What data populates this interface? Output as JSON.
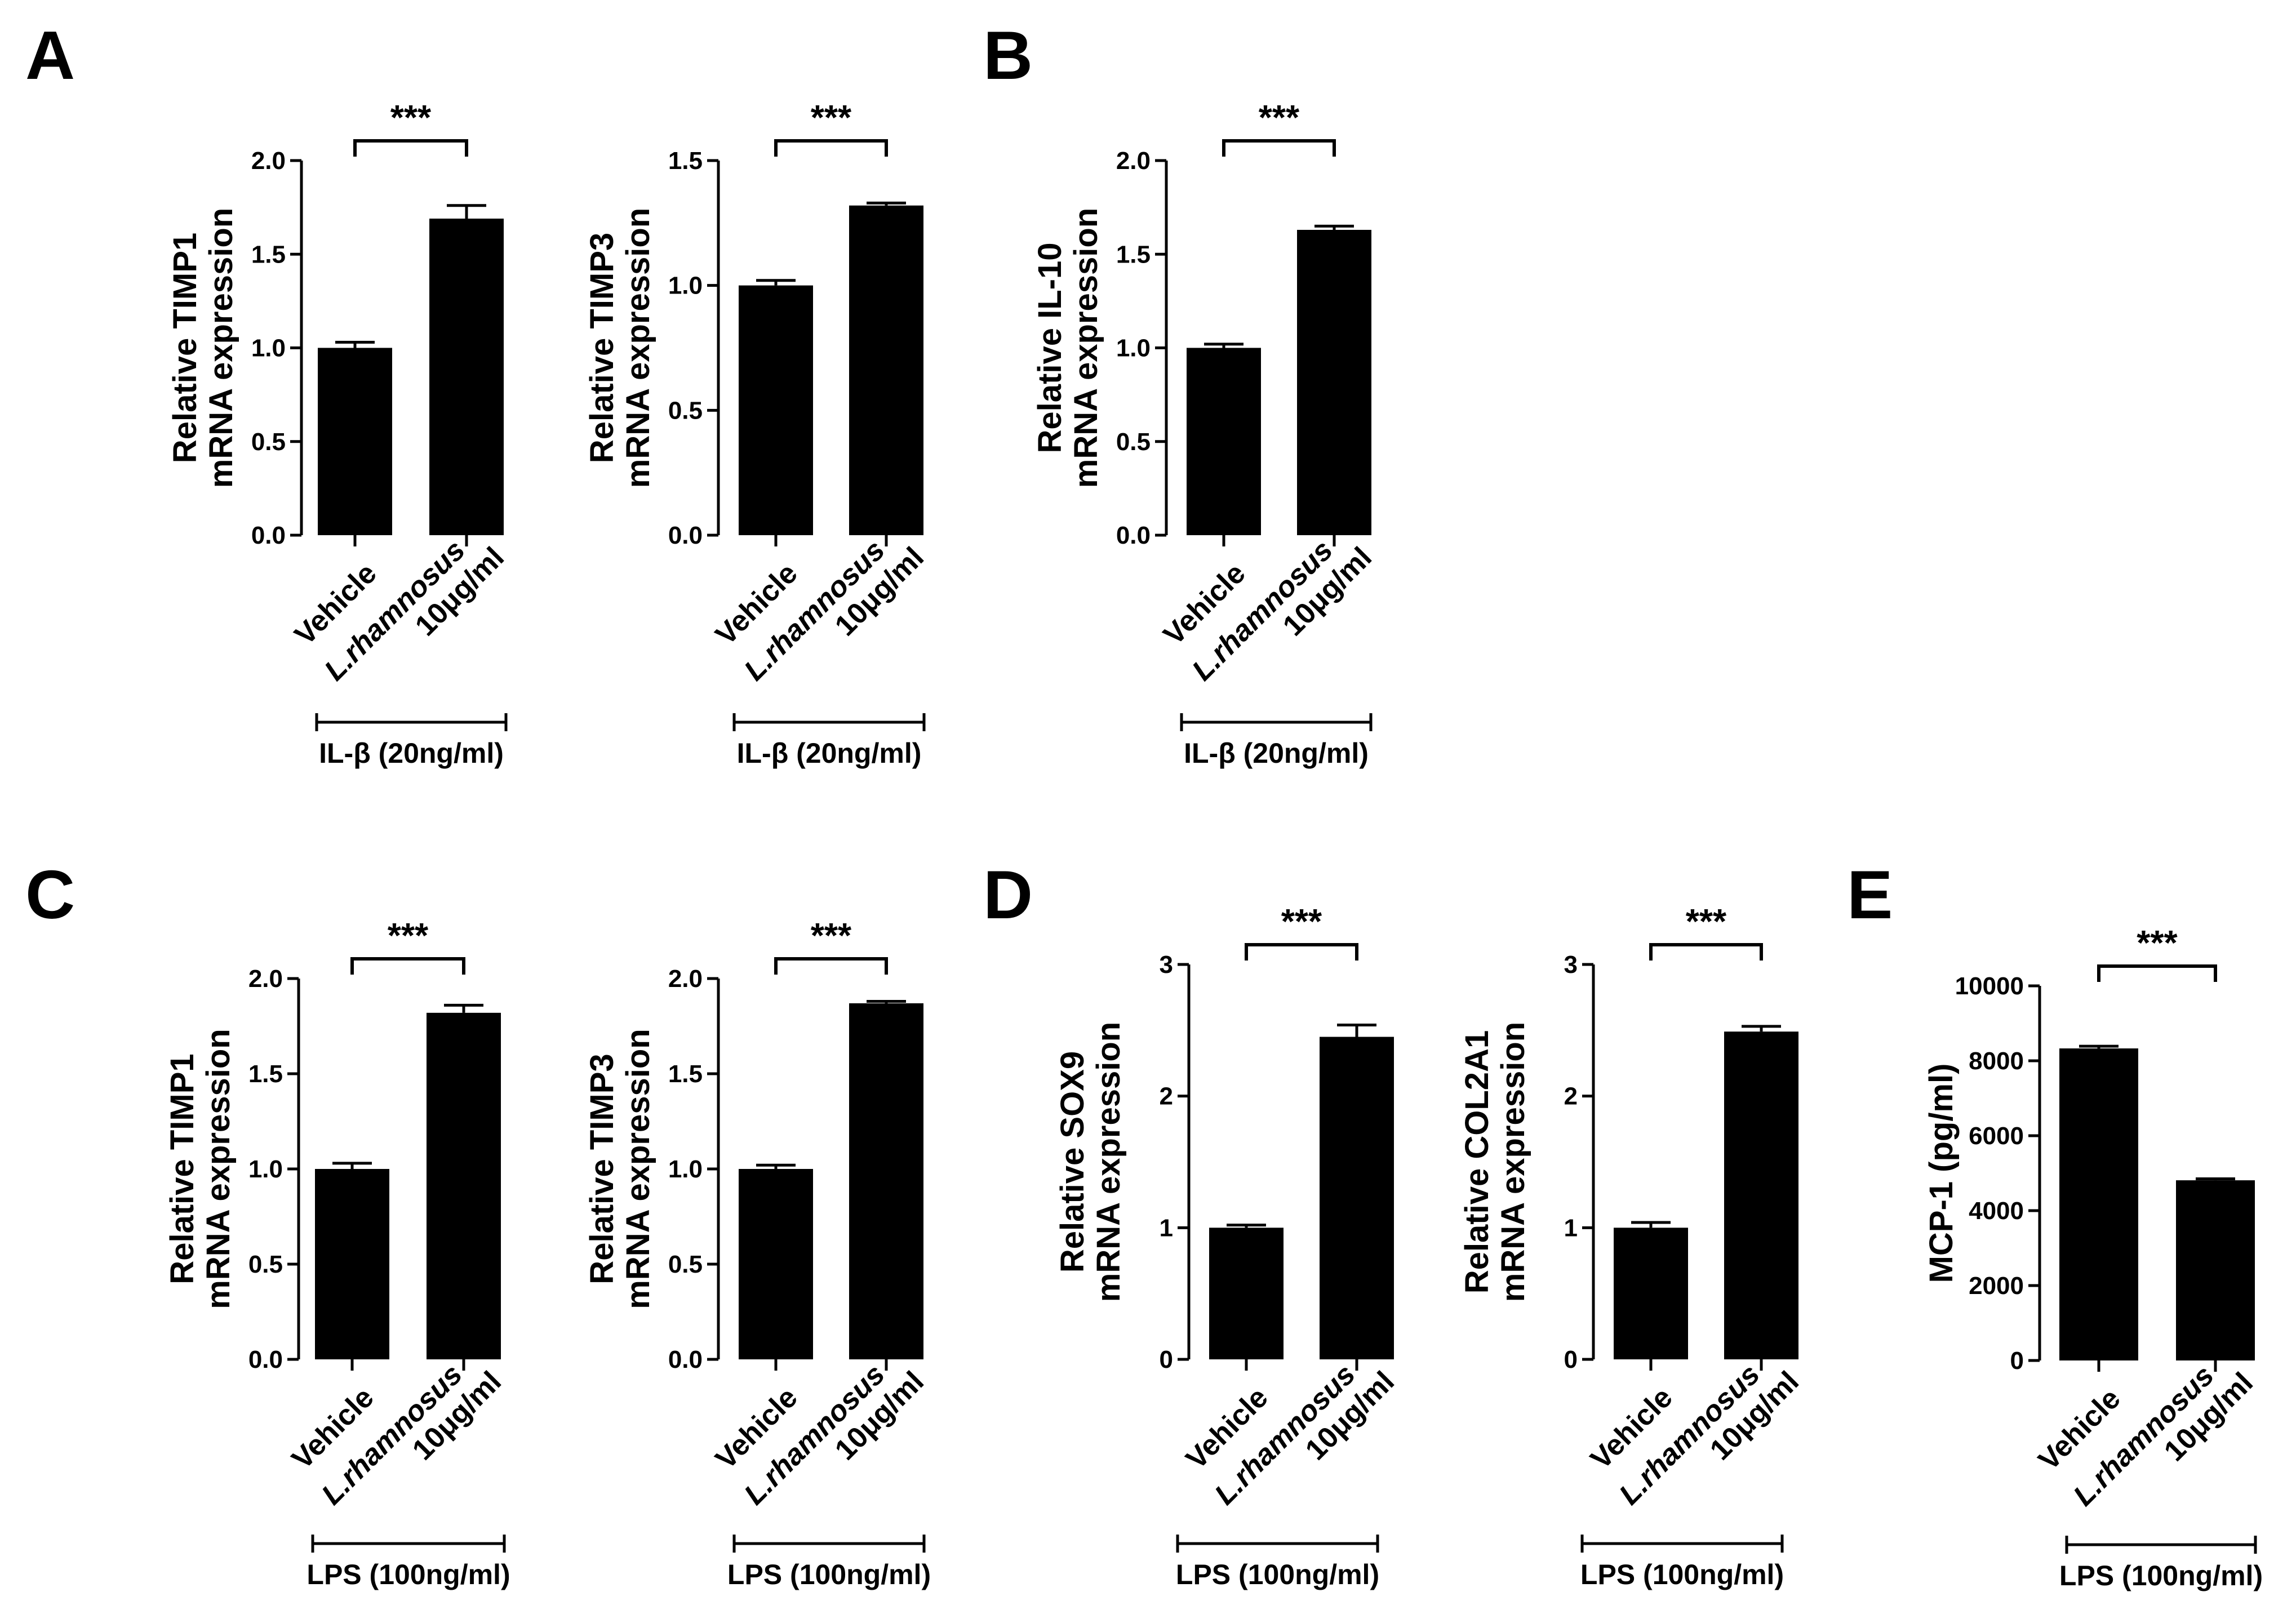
{
  "panel_labels": [
    "A",
    "B",
    "C",
    "D",
    "E"
  ],
  "colors": {
    "bar": "#000000",
    "background": "#ffffff"
  },
  "chart_data": [
    {
      "panel": "A",
      "type": "bar",
      "categories": [
        "Vehicle",
        "L.rhamnosus|10μg/ml"
      ],
      "values": [
        1.0,
        1.69
      ],
      "errors": [
        0.03,
        0.07
      ],
      "ylabel": [
        "Relative TIMP1",
        "mRNA expression"
      ],
      "ylim": [
        0,
        2.0
      ],
      "yticks": [
        "0.0",
        "0.5",
        "1.0",
        "1.5",
        "2.0"
      ],
      "significance": "***",
      "condition": "IL-β (20ng/ml)"
    },
    {
      "panel": "A",
      "type": "bar",
      "categories": [
        "Vehicle",
        "L.rhamnosus|10μg/ml"
      ],
      "values": [
        1.0,
        1.32
      ],
      "errors": [
        0.02,
        0.01
      ],
      "ylabel": [
        "Relative TIMP3",
        "mRNA expression"
      ],
      "ylim": [
        0,
        1.5
      ],
      "yticks": [
        "0.0",
        "0.5",
        "1.0",
        "1.5"
      ],
      "significance": "***",
      "condition": "IL-β (20ng/ml)"
    },
    {
      "panel": "B",
      "type": "bar",
      "categories": [
        "Vehicle",
        "L.rhamnosus|10μg/ml"
      ],
      "values": [
        1.0,
        1.63
      ],
      "errors": [
        0.02,
        0.02
      ],
      "ylabel": [
        "Relative IL-10",
        "mRNA expression"
      ],
      "ylim": [
        0,
        2.0
      ],
      "yticks": [
        "0.0",
        "0.5",
        "1.0",
        "1.5",
        "2.0"
      ],
      "significance": "***",
      "condition": "IL-β (20ng/ml)"
    },
    {
      "panel": "C",
      "type": "bar",
      "categories": [
        "Vehicle",
        "L.rhamnosus|10μg/ml"
      ],
      "values": [
        1.0,
        1.82
      ],
      "errors": [
        0.03,
        0.04
      ],
      "ylabel": [
        "Relative TIMP1",
        "mRNA expression"
      ],
      "ylim": [
        0,
        2.0
      ],
      "yticks": [
        "0.0",
        "0.5",
        "1.0",
        "1.5",
        "2.0"
      ],
      "significance": "***",
      "condition": "LPS (100ng/ml)"
    },
    {
      "panel": "C",
      "type": "bar",
      "categories": [
        "Vehicle",
        "L.rhamnosus|10μg/ml"
      ],
      "values": [
        1.0,
        1.87
      ],
      "errors": [
        0.02,
        0.01
      ],
      "ylabel": [
        "Relative TIMP3",
        "mRNA expression"
      ],
      "ylim": [
        0,
        2.0
      ],
      "yticks": [
        "0.0",
        "0.5",
        "1.0",
        "1.5",
        "2.0"
      ],
      "significance": "***",
      "condition": "LPS (100ng/ml)"
    },
    {
      "panel": "D",
      "type": "bar",
      "categories": [
        "Vehicle",
        "L.rhamnosus|10μg/ml"
      ],
      "values": [
        1.0,
        2.45
      ],
      "errors": [
        0.02,
        0.09
      ],
      "ylabel": [
        "Relative SOX9",
        "mRNA expression"
      ],
      "ylim": [
        0,
        3
      ],
      "yticks": [
        "0",
        "1",
        "2",
        "3"
      ],
      "significance": "***",
      "condition": "LPS (100ng/ml)"
    },
    {
      "panel": "D",
      "type": "bar",
      "categories": [
        "Vehicle",
        "L.rhamnosus|10μg/ml"
      ],
      "values": [
        1.0,
        2.49
      ],
      "errors": [
        0.04,
        0.04
      ],
      "ylabel": [
        "Relative COL2A1",
        "mRNA expression"
      ],
      "ylim": [
        0,
        3
      ],
      "yticks": [
        "0",
        "1",
        "2",
        "3"
      ],
      "significance": "***",
      "condition": "LPS (100ng/ml)"
    },
    {
      "panel": "E",
      "type": "bar",
      "categories": [
        "Vehicle",
        "L.rhamnosus|10μg/ml"
      ],
      "values": [
        8330,
        4810
      ],
      "errors": [
        60,
        40
      ],
      "ylabel": [
        "MCP-1 (pg/ml)"
      ],
      "ylim": [
        0,
        10000
      ],
      "yticks": [
        "0",
        "2000",
        "4000",
        "6000",
        "8000",
        "10000"
      ],
      "significance": "***",
      "condition": "LPS (100ng/ml)"
    }
  ]
}
